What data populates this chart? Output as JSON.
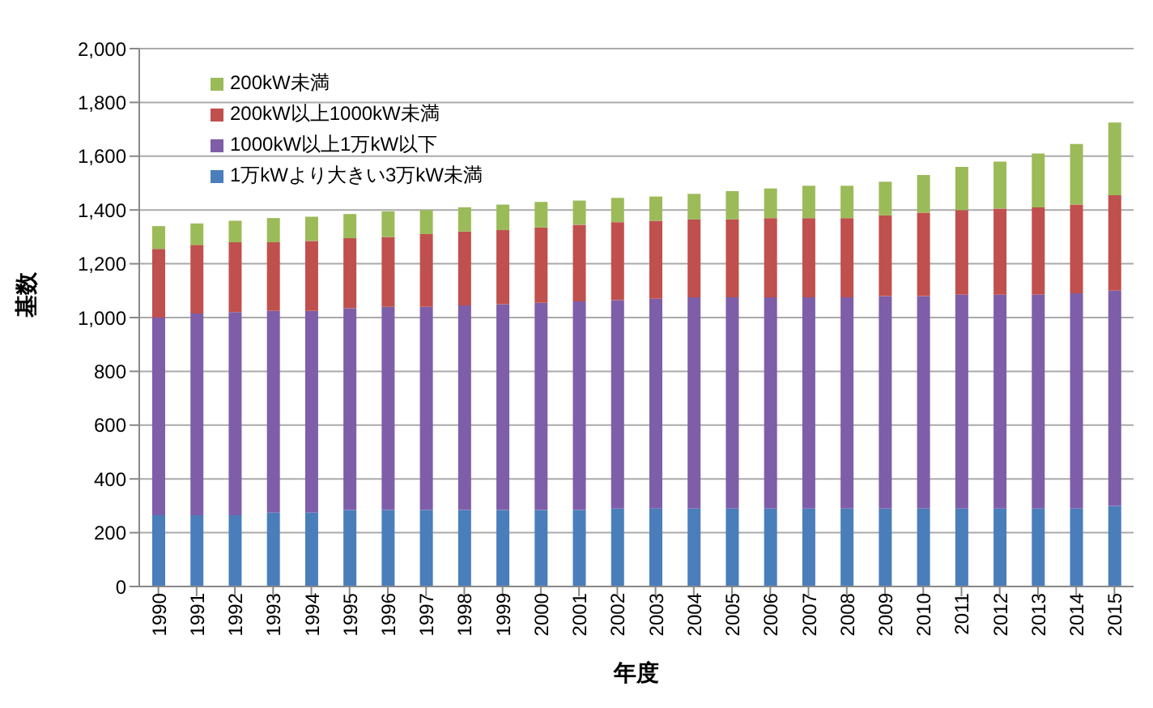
{
  "chart_data": {
    "type": "bar",
    "stacked": true,
    "xlabel": "年度",
    "ylabel": "基数",
    "categories": [
      "1990",
      "1991",
      "1992",
      "1993",
      "1994",
      "1995",
      "1996",
      "1997",
      "1998",
      "1999",
      "2000",
      "2001",
      "2002",
      "2003",
      "2004",
      "2005",
      "2006",
      "2007",
      "2008",
      "2009",
      "2010",
      "2011",
      "2012",
      "2013",
      "2014",
      "2015"
    ],
    "series": [
      {
        "name": "1万kWより大きい3万kW未満",
        "color": "#4a7ebb",
        "values": [
          265,
          265,
          265,
          275,
          275,
          285,
          285,
          285,
          285,
          285,
          285,
          285,
          290,
          290,
          290,
          290,
          290,
          290,
          290,
          290,
          290,
          290,
          290,
          290,
          290,
          300
        ]
      },
      {
        "name": "1000kW以上1万kW以下",
        "color": "#7e5ea8",
        "values": [
          735,
          750,
          755,
          750,
          750,
          750,
          755,
          755,
          760,
          765,
          770,
          775,
          775,
          780,
          785,
          785,
          785,
          785,
          785,
          790,
          790,
          795,
          795,
          795,
          800,
          800
        ]
      },
      {
        "name": "200kW以上1000kW未満",
        "color": "#c0504d",
        "values": [
          255,
          255,
          260,
          255,
          260,
          260,
          260,
          270,
          275,
          275,
          280,
          285,
          290,
          290,
          290,
          290,
          295,
          295,
          295,
          300,
          310,
          315,
          320,
          325,
          330,
          355
        ]
      },
      {
        "name": "200kW未満",
        "color": "#9bbb59",
        "values": [
          85,
          80,
          80,
          90,
          90,
          90,
          95,
          90,
          90,
          95,
          95,
          90,
          90,
          90,
          95,
          105,
          110,
          120,
          120,
          125,
          140,
          160,
          175,
          200,
          225,
          270
        ]
      }
    ],
    "ylim": [
      0,
      2000
    ],
    "yticks": [
      0,
      200,
      400,
      600,
      800,
      {
        "value": 1000,
        "label": "1,000"
      },
      {
        "value": 1200,
        "label": "1,200"
      },
      {
        "value": 1400,
        "label": "1,400"
      },
      {
        "value": 1600,
        "label": "1,600"
      },
      {
        "value": 1800,
        "label": "1,800"
      },
      {
        "value": 2000,
        "label": "2,000"
      }
    ],
    "grid": "y",
    "legend": "top left"
  }
}
